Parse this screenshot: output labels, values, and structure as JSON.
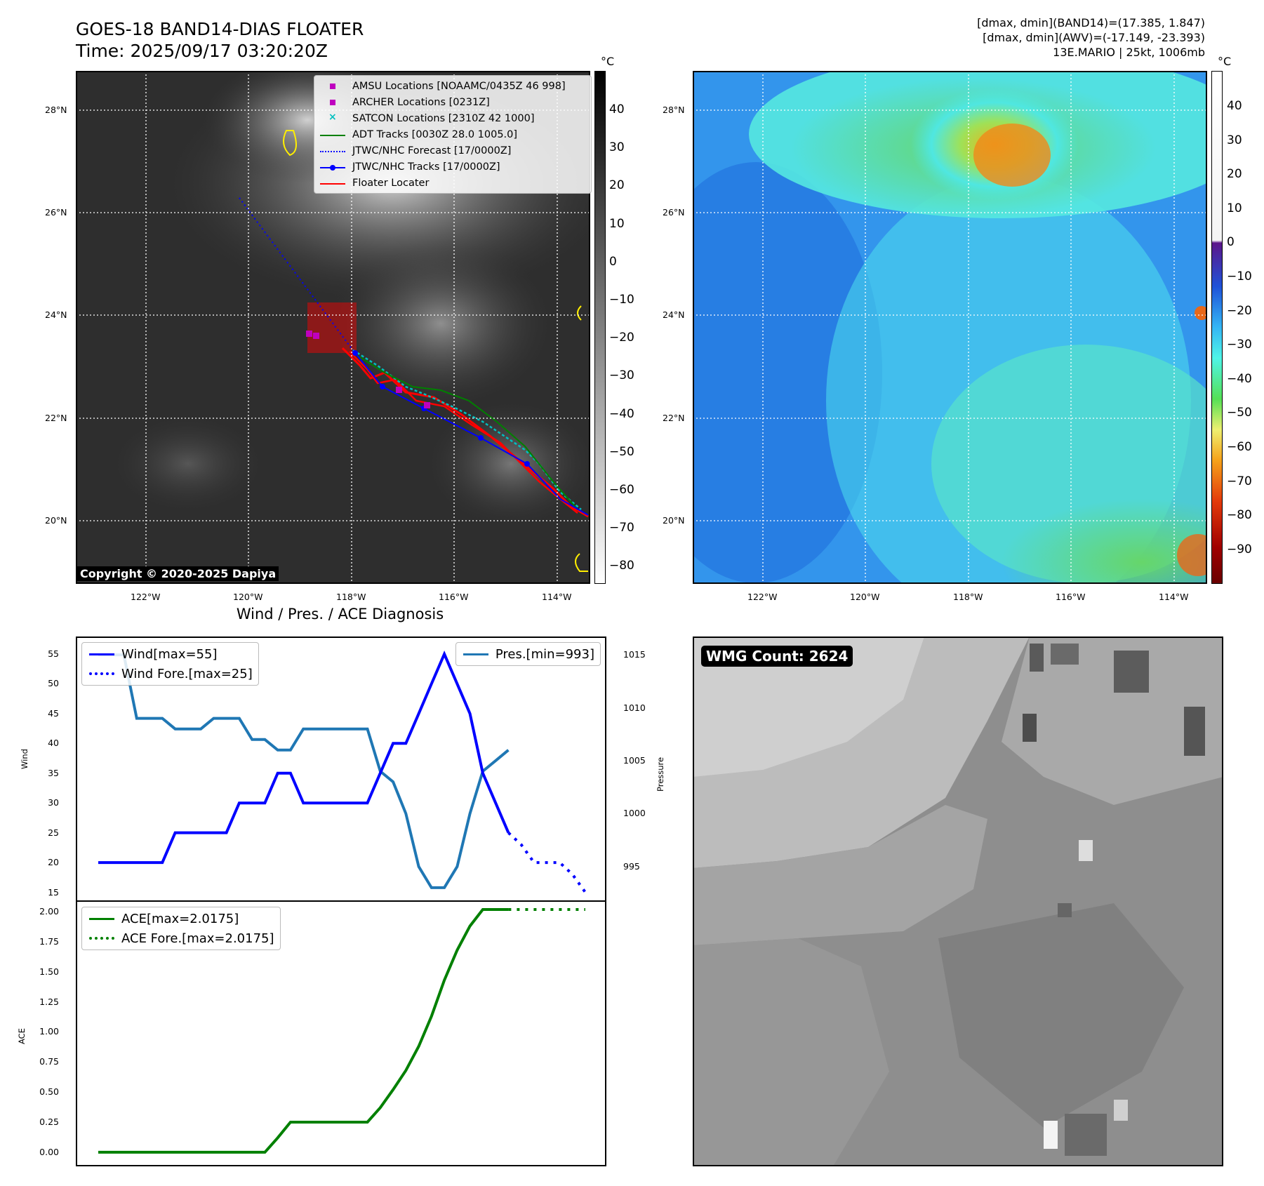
{
  "header": {
    "title_line1": "GOES-18 BAND14-DIAS FLOATER",
    "title_line2": "Time: 2025/09/17 03:20:20Z",
    "stats_line1": "[dmax, dmin](BAND14)=(17.385, 1.847)",
    "stats_line2": "[dmax, dmin](AWV)=(-17.149, -23.393)",
    "stats_line3": "13E.MARIO | 25kt, 1006mb"
  },
  "map": {
    "lat_labels": [
      "28°N",
      "26°N",
      "24°N",
      "22°N",
      "20°N"
    ],
    "lon_labels": [
      "122°W",
      "120°W",
      "118°W",
      "116°W",
      "114°W"
    ],
    "copyright": "Copyright © 2020-2025 Dapiya",
    "legend": [
      {
        "label": "AMSU Locations [NOAAMC/0435Z 46 998]",
        "style": "square",
        "color": "#bf00bf"
      },
      {
        "label": "ARCHER Locations [0231Z]",
        "style": "square",
        "color": "#bf00bf"
      },
      {
        "label": "SATCON Locations [2310Z 42 1000]",
        "style": "x",
        "color": "#00bfbf"
      },
      {
        "label": "ADT Tracks [0030Z 28.0 1005.0]",
        "style": "line",
        "color": "#008000"
      },
      {
        "label": "JTWC/NHC Forecast [17/0000Z]",
        "style": "dotted",
        "color": "#0000ff"
      },
      {
        "label": "JTWC/NHC Tracks [17/0000Z]",
        "style": "line-dot",
        "color": "#0000ff"
      },
      {
        "label": "Floater Locater",
        "style": "line",
        "color": "#ff0000"
      }
    ],
    "cb1_unit": "°C",
    "cb1_ticks": [
      "40",
      "30",
      "20",
      "10",
      "0",
      "−10",
      "−20",
      "−30",
      "−40",
      "−50",
      "−60",
      "−70",
      "−80"
    ],
    "cb2_unit": "°C",
    "cb2_ticks": [
      "40",
      "30",
      "20",
      "10",
      "0",
      "−10",
      "−20",
      "−30",
      "−40",
      "−50",
      "−60",
      "−70",
      "−80",
      "−90"
    ],
    "colors": {
      "track_red": "#ff0000",
      "track_blue": "#0000ff",
      "track_green": "#008000",
      "track_cyan": "#00bfbf",
      "marker_magenta": "#bf00bf"
    }
  },
  "diagnosis": {
    "title": "Wind / Pres. / ACE Diagnosis",
    "wind_ylabel": "Wind",
    "pres_ylabel": "Pressure",
    "ace_ylabel": "ACE",
    "wind_ticks": [
      "55",
      "50",
      "45",
      "40",
      "35",
      "30",
      "25",
      "20",
      "15"
    ],
    "pres_ticks": [
      "1015",
      "1010",
      "1005",
      "1000",
      "995"
    ],
    "ace_ticks": [
      "2.00",
      "1.75",
      "1.50",
      "1.25",
      "1.00",
      "0.75",
      "0.50",
      "0.25",
      "0.00"
    ],
    "legend_wind": "Wind[max=55]",
    "legend_wind_fore": "Wind Fore.[max=25]",
    "legend_pres": "Pres.[min=993]",
    "legend_ace": "ACE[max=2.0175]",
    "legend_ace_fore": "ACE Fore.[max=2.0175]"
  },
  "wmg": {
    "label": "WMG Count: 2624"
  },
  "chart_data": [
    {
      "type": "line",
      "title": "Wind / Pres. / ACE Diagnosis",
      "ylabel": "Wind",
      "ylim": [
        14,
        57
      ],
      "series": [
        {
          "name": "Wind[max=55]",
          "color": "#0000ff",
          "style": "solid",
          "x": [
            0,
            1,
            2,
            3,
            4,
            5,
            6,
            7,
            8,
            9,
            10,
            11,
            12,
            13,
            14,
            15,
            16,
            17,
            18,
            19,
            20,
            21,
            22,
            23,
            24,
            25,
            26,
            27,
            28,
            29,
            30,
            31,
            32
          ],
          "values": [
            20,
            20,
            20,
            20,
            20,
            20,
            25,
            25,
            25,
            25,
            25,
            30,
            30,
            30,
            35,
            35,
            30,
            30,
            30,
            30,
            30,
            30,
            35,
            40,
            40,
            45,
            50,
            55,
            50,
            45,
            35,
            30,
            25
          ]
        },
        {
          "name": "Wind Fore.[max=25]",
          "color": "#0000ff",
          "style": "dotted",
          "x": [
            32,
            33,
            34,
            35,
            36,
            37,
            38
          ],
          "values": [
            25,
            23,
            20,
            20,
            20,
            18,
            15
          ]
        }
      ]
    },
    {
      "type": "line",
      "ylabel": "Pressure",
      "ylim": [
        992,
        1016.2
      ],
      "series": [
        {
          "name": "Pres.[min=993]",
          "color": "#1f77b4",
          "style": "solid",
          "x": [
            0,
            1,
            2,
            3,
            4,
            5,
            6,
            7,
            8,
            9,
            10,
            11,
            12,
            13,
            14,
            15,
            16,
            17,
            18,
            19,
            20,
            21,
            22,
            23,
            24,
            25,
            26,
            27,
            28,
            29,
            30,
            31,
            32
          ],
          "values": [
            1015,
            1015,
            1015,
            1009,
            1009,
            1009,
            1008,
            1008,
            1008,
            1009,
            1009,
            1009,
            1007,
            1007,
            1006,
            1006,
            1008,
            1008,
            1008,
            1008,
            1008,
            1008,
            1004,
            1003,
            1000,
            995,
            993,
            993,
            995,
            1000,
            1004,
            1005,
            1006
          ]
        }
      ]
    },
    {
      "type": "line",
      "ylabel": "ACE",
      "ylim": [
        -0.1,
        2.07
      ],
      "series": [
        {
          "name": "ACE[max=2.0175]",
          "color": "#008000",
          "style": "solid",
          "x": [
            0,
            1,
            2,
            3,
            4,
            5,
            6,
            7,
            8,
            9,
            10,
            11,
            12,
            13,
            14,
            15,
            16,
            17,
            18,
            19,
            20,
            21,
            22,
            23,
            24,
            25,
            26,
            27,
            28,
            29,
            30,
            31,
            32
          ],
          "values": [
            0,
            0,
            0,
            0,
            0,
            0,
            0,
            0,
            0,
            0,
            0,
            0,
            0,
            0,
            0.12,
            0.25,
            0.25,
            0.25,
            0.25,
            0.25,
            0.25,
            0.25,
            0.37,
            0.52,
            0.68,
            0.88,
            1.13,
            1.43,
            1.68,
            1.88,
            2.0175,
            2.0175,
            2.0175
          ]
        },
        {
          "name": "ACE Fore.[max=2.0175]",
          "color": "#008000",
          "style": "dotted",
          "x": [
            32,
            33,
            34,
            35,
            36,
            37,
            38
          ],
          "values": [
            2.0175,
            2.0175,
            2.0175,
            2.0175,
            2.0175,
            2.0175,
            2.0175
          ]
        }
      ]
    }
  ]
}
